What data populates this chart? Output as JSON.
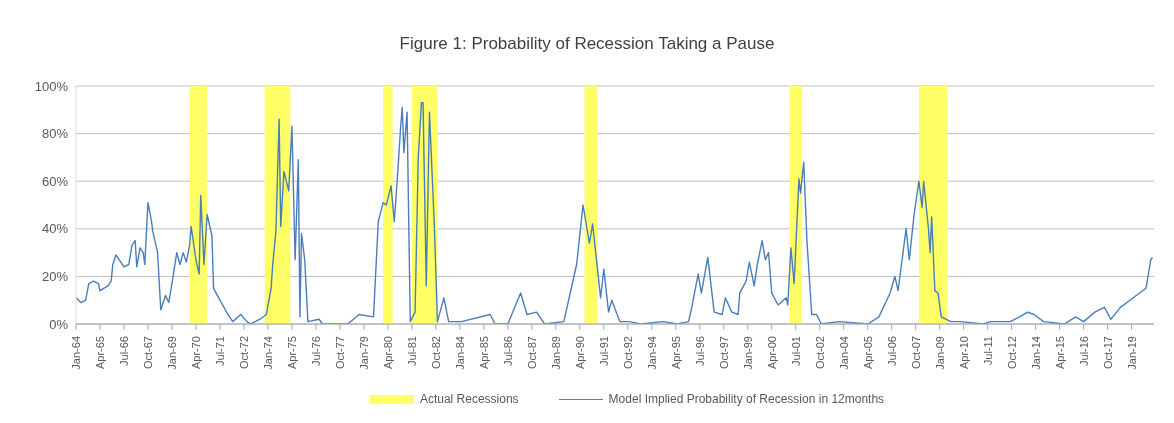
{
  "chart_data": {
    "type": "line",
    "title": "Figure 1: Probability of Recession Taking a Pause",
    "x": [
      "1964-01",
      "1964-04",
      "1964-07",
      "1964-09",
      "1964-12",
      "1965-03",
      "1965-04",
      "1965-09",
      "1965-11",
      "1965-12",
      "1966-02",
      "1966-07",
      "1966-10",
      "1966-12",
      "1967-02",
      "1967-03",
      "1967-05",
      "1967-07",
      "1967-08",
      "1967-10",
      "1967-12",
      "1968-01",
      "1968-04",
      "1968-06",
      "1968-09",
      "1968-11",
      "1969-01",
      "1969-04",
      "1969-06",
      "1969-08",
      "1969-10",
      "1969-12",
      "1970-01",
      "1970-04",
      "1970-06",
      "1970-07",
      "1970-09",
      "1970-11",
      "1971-02",
      "1971-03",
      "1971-07",
      "1971-12",
      "1972-03",
      "1972-08",
      "1972-12",
      "1973-02",
      "1973-08",
      "1973-12",
      "1974-03",
      "1974-04",
      "1974-06",
      "1974-08",
      "1974-09",
      "1974-11",
      "1975-02",
      "1975-04",
      "1975-06",
      "1975-08",
      "1975-09",
      "1975-10",
      "1975-12",
      "1976-02",
      "1976-09",
      "1976-11",
      "1978-03",
      "1978-10",
      "1979-07",
      "1979-10",
      "1980-01",
      "1980-03",
      "1980-06",
      "1980-08",
      "1980-10",
      "1980-12",
      "1981-01",
      "1981-02",
      "1981-04",
      "1981-06",
      "1981-09",
      "1981-11",
      "1982-01",
      "1982-02",
      "1982-04",
      "1982-06",
      "1982-09",
      "1982-11",
      "1983-03",
      "1983-06",
      "1984-02",
      "1985-08",
      "1985-11",
      "1986-07",
      "1987-03",
      "1987-07",
      "1988-01",
      "1988-06",
      "1989-06",
      "1990-02",
      "1990-06",
      "1990-10",
      "1990-12",
      "1991-05",
      "1991-07",
      "1991-10",
      "1991-12",
      "1992-05",
      "1992-11",
      "1993-06",
      "1994-08",
      "1995-05",
      "1995-12",
      "1996-02",
      "1996-06",
      "1996-08",
      "1996-12",
      "1997-04",
      "1997-09",
      "1997-11",
      "1998-03",
      "1998-07",
      "1998-08",
      "1998-12",
      "1999-02",
      "1999-05",
      "1999-07",
      "1999-10",
      "1999-12",
      "2000-02",
      "2000-04",
      "2000-08",
      "2001-01",
      "2001-02",
      "2001-04",
      "2001-06",
      "2001-09",
      "2001-10",
      "2001-12",
      "2002-02",
      "2002-05",
      "2002-08",
      "2002-11",
      "2003-10",
      "2005-04",
      "2005-11",
      "2006-06",
      "2006-09",
      "2006-11",
      "2007-04",
      "2007-06",
      "2007-09",
      "2007-12",
      "2008-02",
      "2008-03",
      "2008-06",
      "2008-07",
      "2008-08",
      "2008-10",
      "2008-12",
      "2009-02",
      "2009-08",
      "2010-02",
      "2011-04",
      "2011-09",
      "2012-09",
      "2013-03",
      "2013-08",
      "2013-12",
      "2014-06",
      "2015-07",
      "2016-02",
      "2016-07",
      "2017-02",
      "2017-08",
      "2017-12",
      "2018-06",
      "2018-12",
      "2019-06",
      "2019-10",
      "2020-01",
      "2020-02"
    ],
    "series": [
      {
        "name": "Model Implied Probability of Recession in 12months",
        "color": "#4a7ebb",
        "values": [
          11,
          9,
          10,
          17,
          18,
          17,
          14,
          16,
          18,
          25,
          29,
          24,
          25,
          33,
          35,
          24,
          32,
          30,
          25,
          51,
          44,
          39,
          30,
          6,
          12,
          9,
          17,
          30,
          25,
          30,
          26,
          33,
          41,
          27,
          21,
          54,
          25,
          46,
          37,
          15,
          10,
          4,
          1,
          4,
          1,
          0,
          2,
          4,
          15,
          25,
          39,
          86,
          41,
          64,
          56,
          83,
          27,
          69,
          3,
          38,
          27,
          1,
          2,
          0,
          0,
          4,
          3,
          43,
          51,
          50,
          58,
          43,
          62,
          83,
          91,
          72,
          89,
          1,
          5,
          70,
          93,
          93,
          16,
          89,
          42,
          1,
          11,
          1,
          1,
          4,
          0,
          0,
          13,
          4,
          5,
          0,
          1,
          25,
          50,
          34,
          42,
          11,
          23,
          5,
          10,
          1,
          1,
          0,
          1,
          0,
          1,
          7,
          21,
          13,
          28,
          5,
          4,
          11,
          5,
          4,
          13,
          18,
          26,
          16,
          25,
          35,
          27,
          30,
          13,
          8,
          11,
          8,
          32,
          17,
          61,
          55,
          68,
          35,
          4,
          4,
          0,
          1,
          0,
          3,
          13,
          20,
          14,
          40,
          27,
          46,
          60,
          49,
          60,
          40,
          30,
          45,
          14,
          13,
          3,
          1,
          1,
          0,
          1,
          1,
          3,
          5,
          4,
          1,
          0,
          3,
          1,
          5,
          7,
          2,
          7,
          10,
          13,
          15,
          27,
          28
        ]
      }
    ],
    "bands": [
      {
        "axis": "x",
        "from": "1969-12",
        "to": "1970-11",
        "label": "Actual Recessions",
        "color": "#ffff66"
      },
      {
        "axis": "x",
        "from": "1973-11",
        "to": "1975-03",
        "color": "#ffff66"
      },
      {
        "axis": "x",
        "from": "1980-01",
        "to": "1980-07",
        "color": "#ffff66"
      },
      {
        "axis": "x",
        "from": "1981-07",
        "to": "1982-11",
        "color": "#ffff66"
      },
      {
        "axis": "x",
        "from": "1990-07",
        "to": "1991-03",
        "color": "#ffff66"
      },
      {
        "axis": "x",
        "from": "2001-03",
        "to": "2001-11",
        "color": "#ffff66"
      },
      {
        "axis": "x",
        "from": "2007-12",
        "to": "2009-06",
        "color": "#ffff66"
      }
    ],
    "xlim": [
      "1964-01",
      "2020-03"
    ],
    "xticks": [
      {
        "value": "1964-01",
        "label": "Jan-64"
      },
      {
        "value": "1965-04",
        "label": "Apr-65"
      },
      {
        "value": "1966-07",
        "label": "Jul-66"
      },
      {
        "value": "1967-10",
        "label": "Oct-67"
      },
      {
        "value": "1969-01",
        "label": "Jan-69"
      },
      {
        "value": "1970-04",
        "label": "Apr-70"
      },
      {
        "value": "1971-07",
        "label": "Jul-71"
      },
      {
        "value": "1972-10",
        "label": "Oct-72"
      },
      {
        "value": "1974-01",
        "label": "Jan-74"
      },
      {
        "value": "1975-04",
        "label": "Apr-75"
      },
      {
        "value": "1976-07",
        "label": "Jul-76"
      },
      {
        "value": "1977-10",
        "label": "Oct-77"
      },
      {
        "value": "1979-01",
        "label": "Jan-79"
      },
      {
        "value": "1980-04",
        "label": "Apr-80"
      },
      {
        "value": "1981-07",
        "label": "Jul-81"
      },
      {
        "value": "1982-10",
        "label": "Oct-82"
      },
      {
        "value": "1984-01",
        "label": "Jan-84"
      },
      {
        "value": "1985-04",
        "label": "Apr-85"
      },
      {
        "value": "1986-07",
        "label": "Jul-86"
      },
      {
        "value": "1987-10",
        "label": "Oct-87"
      },
      {
        "value": "1989-01",
        "label": "Jan-89"
      },
      {
        "value": "1990-04",
        "label": "Apr-90"
      },
      {
        "value": "1991-07",
        "label": "Jul-91"
      },
      {
        "value": "1992-10",
        "label": "Oct-92"
      },
      {
        "value": "1994-01",
        "label": "Jan-94"
      },
      {
        "value": "1995-04",
        "label": "Apr-95"
      },
      {
        "value": "1996-07",
        "label": "Jul-96"
      },
      {
        "value": "1997-10",
        "label": "Oct-97"
      },
      {
        "value": "1999-01",
        "label": "Jan-99"
      },
      {
        "value": "2000-04",
        "label": "Apr-00"
      },
      {
        "value": "2001-07",
        "label": "Jul-01"
      },
      {
        "value": "2002-10",
        "label": "Oct-02"
      },
      {
        "value": "2004-01",
        "label": "Jan-04"
      },
      {
        "value": "2005-04",
        "label": "Apr-05"
      },
      {
        "value": "2006-07",
        "label": "Jul-06"
      },
      {
        "value": "2007-10",
        "label": "Oct-07"
      },
      {
        "value": "2009-01",
        "label": "Jan-09"
      },
      {
        "value": "2010-04",
        "label": "Apr-10"
      },
      {
        "value": "2011-07",
        "label": "Jul-11"
      },
      {
        "value": "2012-10",
        "label": "Oct-12"
      },
      {
        "value": "2014-01",
        "label": "Jan-14"
      },
      {
        "value": "2015-04",
        "label": "Apr-15"
      },
      {
        "value": "2016-07",
        "label": "Jul-16"
      },
      {
        "value": "2017-10",
        "label": "Oct-17"
      },
      {
        "value": "2019-01",
        "label": "Jan-19"
      }
    ],
    "ylim": [
      0,
      100
    ],
    "yticks": [
      {
        "value": 0,
        "label": "0%"
      },
      {
        "value": 20,
        "label": "20%"
      },
      {
        "value": 40,
        "label": "40%"
      },
      {
        "value": 60,
        "label": "60%"
      },
      {
        "value": 80,
        "label": "80%"
      },
      {
        "value": 100,
        "label": "100%"
      }
    ],
    "grid": "y",
    "legend": "bottom",
    "marker": "none",
    "line_style": "solid"
  }
}
